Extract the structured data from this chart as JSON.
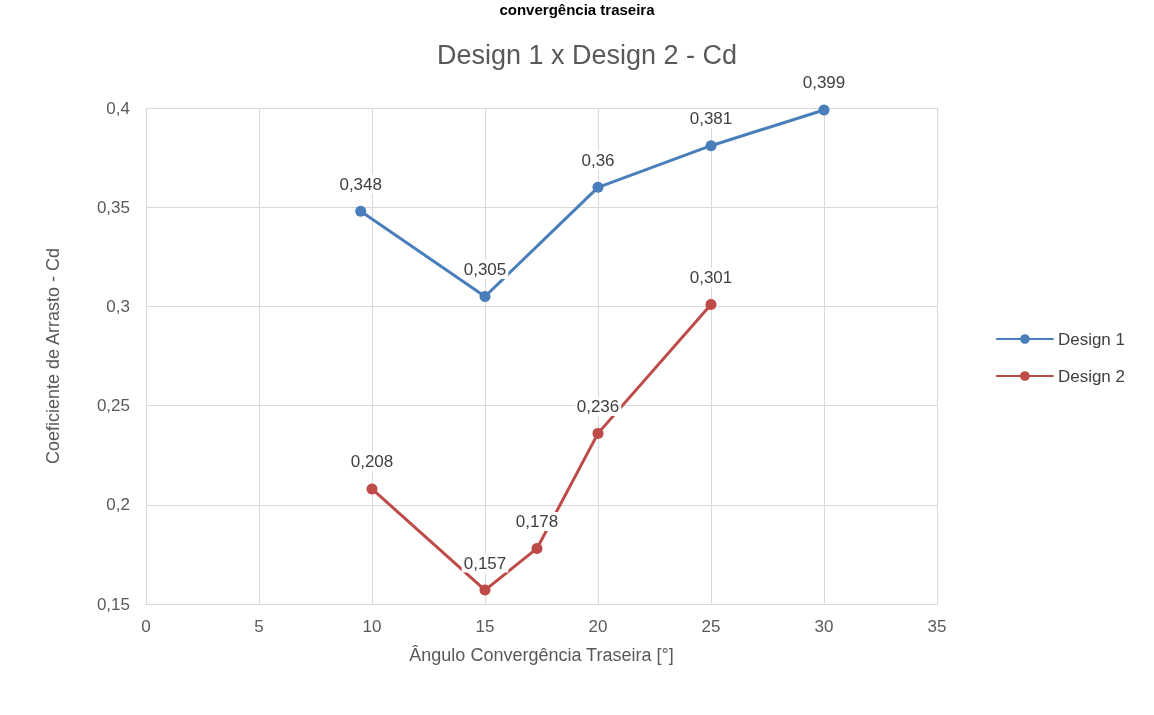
{
  "chart_data": {
    "type": "line",
    "title": "Design 1 x Design 2 - Cd",
    "xlabel": "Ângulo Convergência Traseira [°]",
    "ylabel": "Coeficiente de Arrasto - Cd",
    "annotations": [
      "convergência traseira"
    ],
    "series": [
      {
        "name": "Design 1",
        "color": "#4a7ebb",
        "x": [
          9.5,
          15,
          20,
          25,
          30
        ],
        "values": [
          0.348,
          0.305,
          0.36,
          0.381,
          0.399
        ],
        "value_labels": [
          "0,348",
          "0,305",
          "0,36",
          "0,381",
          "0,399"
        ]
      },
      {
        "name": "Design 2",
        "color": "#be4b48",
        "x": [
          10,
          15,
          17.3,
          20,
          25
        ],
        "values": [
          0.208,
          0.157,
          0.178,
          0.236,
          0.301
        ],
        "value_labels": [
          "0,208",
          "0,157",
          "0,178",
          "0,236",
          "0,301"
        ]
      }
    ],
    "xlim": [
      0,
      35
    ],
    "xticks": [
      0,
      5,
      10,
      15,
      20,
      25,
      30,
      35
    ],
    "ylim": [
      0.15,
      0.4
    ],
    "yticks": [
      {
        "value": 0.15,
        "label": "0,15"
      },
      {
        "value": 0.2,
        "label": "0,2"
      },
      {
        "value": 0.25,
        "label": "0,25"
      },
      {
        "value": 0.3,
        "label": "0,3"
      },
      {
        "value": 0.35,
        "label": "0,35"
      },
      {
        "value": 0.4,
        "label": "0,4"
      }
    ],
    "grid": true,
    "legend": "right",
    "marker": "circle",
    "line_style": "solid"
  }
}
